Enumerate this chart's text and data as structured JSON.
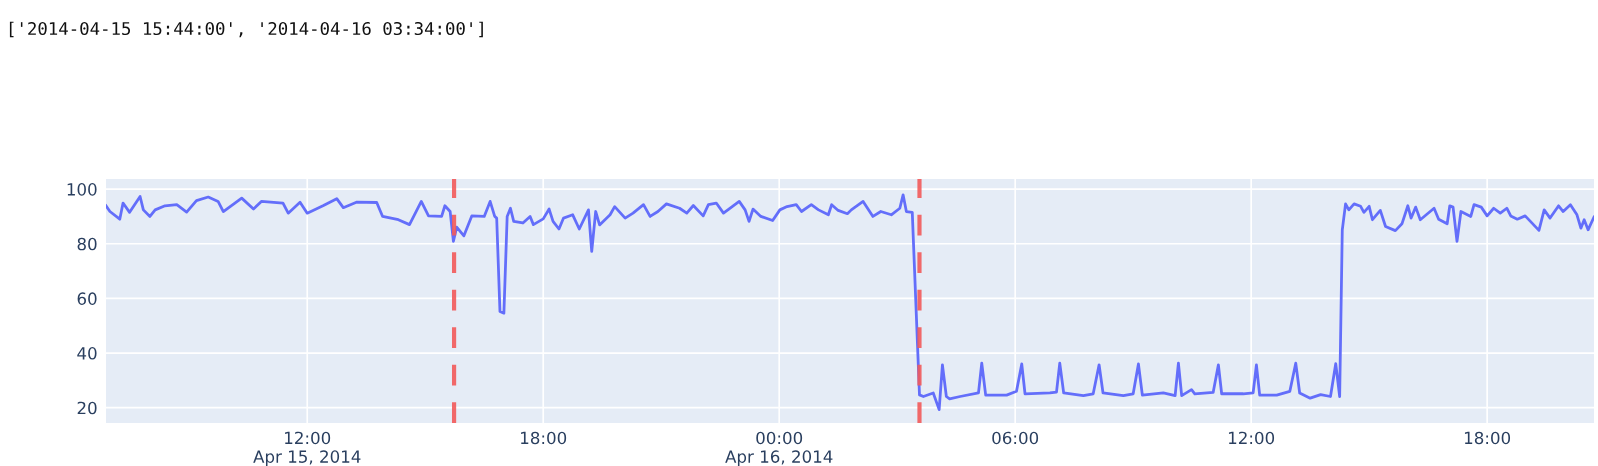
{
  "chart_data": {
    "type": "line",
    "title": "['2014-04-15 15:44:00', '2014-04-16 03:34:00']",
    "x": [
      "2014-04-15T06:53",
      "2014-04-15T06:59",
      "2014-04-15T07:14",
      "2014-04-15T07:19",
      "2014-04-15T07:29",
      "2014-04-15T07:45",
      "2014-04-15T07:50",
      "2014-04-15T08:00",
      "2014-04-15T08:08",
      "2014-04-15T08:23",
      "2014-04-15T08:41",
      "2014-04-15T08:56",
      "2014-04-15T09:11",
      "2014-04-15T09:29",
      "2014-04-15T09:44",
      "2014-04-15T09:52",
      "2014-04-15T10:20",
      "2014-04-15T10:38",
      "2014-04-15T10:50",
      "2014-04-15T11:23",
      "2014-04-15T11:31",
      "2014-04-15T11:49",
      "2014-04-15T12:00",
      "2014-04-15T12:24",
      "2014-04-15T12:45",
      "2014-04-15T12:55",
      "2014-04-15T13:15",
      "2014-04-15T13:46",
      "2014-04-15T13:55",
      "2014-04-15T14:19",
      "2014-04-15T14:36",
      "2014-04-15T14:54",
      "2014-04-15T15:05",
      "2014-04-15T15:25",
      "2014-04-15T15:30",
      "2014-04-15T15:38",
      "2014-04-15T15:43",
      "2014-04-15T15:48",
      "2014-04-15T15:59",
      "2014-04-15T16:11",
      "2014-04-15T16:30",
      "2014-04-15T16:39",
      "2014-04-15T16:46",
      "2014-04-15T16:49",
      "2014-04-15T16:54",
      "2014-04-15T17:00",
      "2014-04-15T17:05",
      "2014-04-15T17:10",
      "2014-04-15T17:15",
      "2014-04-15T17:29",
      "2014-04-15T17:40",
      "2014-04-15T17:45",
      "2014-04-15T18:00",
      "2014-04-15T18:09",
      "2014-04-15T18:15",
      "2014-04-15T18:24",
      "2014-04-15T18:31",
      "2014-04-15T18:45",
      "2014-04-15T18:55",
      "2014-04-15T19:09",
      "2014-04-15T19:14",
      "2014-04-15T19:20",
      "2014-04-15T19:26",
      "2014-04-15T19:42",
      "2014-04-15T19:49",
      "2014-04-15T20:05",
      "2014-04-15T20:17",
      "2014-04-15T20:33",
      "2014-04-15T20:43",
      "2014-04-15T20:55",
      "2014-04-15T21:08",
      "2014-04-15T21:28",
      "2014-04-15T21:39",
      "2014-04-15T21:49",
      "2014-04-15T22:04",
      "2014-04-15T22:12",
      "2014-04-15T22:24",
      "2014-04-15T22:35",
      "2014-04-15T22:59",
      "2014-04-15T23:08",
      "2014-04-15T23:14",
      "2014-04-15T23:20",
      "2014-04-15T23:32",
      "2014-04-15T23:50",
      "2014-04-16T00:01",
      "2014-04-16T00:12",
      "2014-04-16T00:26",
      "2014-04-16T00:34",
      "2014-04-16T00:49",
      "2014-04-16T01:00",
      "2014-04-16T01:15",
      "2014-04-16T01:20",
      "2014-04-16T01:30",
      "2014-04-16T01:44",
      "2014-04-16T01:50",
      "2014-04-16T02:08",
      "2014-04-16T02:23",
      "2014-04-16T02:35",
      "2014-04-16T02:51",
      "2014-04-16T03:04",
      "2014-04-16T03:09",
      "2014-04-16T03:14",
      "2014-04-16T03:23",
      "2014-04-16T03:34",
      "2014-04-16T03:40",
      "2014-04-16T03:55",
      "2014-04-16T04:04",
      "2014-04-16T04:09",
      "2014-04-16T04:15",
      "2014-04-16T04:20",
      "2014-04-16T04:36",
      "2014-04-16T05:04",
      "2014-04-16T05:09",
      "2014-04-16T05:15",
      "2014-04-16T05:47",
      "2014-04-16T06:02",
      "2014-04-16T06:10",
      "2014-04-16T06:15",
      "2014-04-16T06:53",
      "2014-04-16T07:03",
      "2014-04-16T07:08",
      "2014-04-16T07:14",
      "2014-04-16T07:44",
      "2014-04-16T07:59",
      "2014-04-16T08:08",
      "2014-04-16T08:14",
      "2014-04-16T08:45",
      "2014-04-16T09:00",
      "2014-04-16T09:08",
      "2014-04-16T09:14",
      "2014-04-16T09:46",
      "2014-04-16T10:04",
      "2014-04-16T10:09",
      "2014-04-16T10:14",
      "2014-04-16T10:29",
      "2014-04-16T10:34",
      "2014-04-16T11:02",
      "2014-04-16T11:10",
      "2014-04-16T11:15",
      "2014-04-16T11:48",
      "2014-04-16T12:03",
      "2014-04-16T12:08",
      "2014-04-16T12:13",
      "2014-04-16T12:39",
      "2014-04-16T12:59",
      "2014-04-16T13:08",
      "2014-04-16T13:14",
      "2014-04-16T13:30",
      "2014-04-16T13:46",
      "2014-04-16T14:01",
      "2014-04-16T14:09",
      "2014-04-16T14:15",
      "2014-04-16T14:19",
      "2014-04-16T14:24",
      "2014-04-16T14:29",
      "2014-04-16T14:37",
      "2014-04-16T14:47",
      "2014-04-16T14:52",
      "2014-04-16T15:00",
      "2014-04-16T15:05",
      "2014-04-16T15:17",
      "2014-04-16T15:25",
      "2014-04-16T15:40",
      "2014-04-16T15:50",
      "2014-04-16T15:59",
      "2014-04-16T16:04",
      "2014-04-16T16:11",
      "2014-04-16T16:18",
      "2014-04-16T16:39",
      "2014-04-16T16:46",
      "2014-04-16T16:59",
      "2014-04-16T17:03",
      "2014-04-16T17:08",
      "2014-04-16T17:14",
      "2014-04-16T17:20",
      "2014-04-16T17:35",
      "2014-04-16T17:40",
      "2014-04-16T17:51",
      "2014-04-16T18:00",
      "2014-04-16T18:10",
      "2014-04-16T18:20",
      "2014-04-16T18:30",
      "2014-04-16T18:36",
      "2014-04-16T18:46",
      "2014-04-16T18:58",
      "2014-04-16T19:06",
      "2014-04-16T19:19",
      "2014-04-16T19:27",
      "2014-04-16T19:36",
      "2014-04-16T19:49",
      "2014-04-16T19:56",
      "2014-04-16T20:07",
      "2014-04-16T20:17",
      "2014-04-16T20:23",
      "2014-04-16T20:28",
      "2014-04-16T20:34",
      "2014-04-16T20:43"
    ],
    "series": [
      {
        "color": "#636efa",
        "values": [
          93.9,
          91.8,
          89.0,
          94.9,
          91.5,
          97.3,
          92.4,
          90.0,
          92.4,
          93.9,
          94.3,
          91.6,
          95.8,
          97.1,
          95.5,
          91.8,
          96.7,
          92.7,
          95.5,
          94.9,
          91.2,
          95.2,
          91.2,
          93.9,
          96.5,
          93.2,
          95.2,
          95.1,
          90.0,
          88.8,
          87.0,
          95.5,
          90.2,
          90.0,
          93.9,
          91.8,
          80.9,
          86.1,
          82.9,
          90.2,
          90.0,
          95.5,
          90.0,
          89.4,
          55.2,
          54.6,
          90.0,
          93.0,
          88.2,
          87.6,
          90.0,
          87.0,
          89.1,
          92.7,
          88.2,
          85.4,
          89.4,
          90.6,
          85.4,
          92.4,
          77.2,
          91.8,
          86.9,
          90.6,
          93.6,
          89.4,
          91.2,
          94.3,
          90.0,
          91.8,
          94.6,
          93.0,
          91.2,
          94.0,
          90.2,
          94.3,
          94.9,
          91.2,
          95.5,
          92.4,
          88.2,
          92.7,
          90.0,
          88.5,
          92.4,
          93.6,
          94.3,
          91.8,
          94.3,
          92.4,
          90.6,
          94.3,
          92.2,
          91.0,
          92.4,
          95.5,
          90.0,
          91.8,
          90.6,
          93.0,
          97.9,
          91.8,
          91.5,
          24.7,
          24.1,
          25.4,
          19.3,
          35.7,
          24.1,
          23.2,
          24.1,
          25.4,
          36.3,
          24.6,
          24.6,
          26.0,
          36.0,
          25.1,
          25.4,
          25.7,
          36.3,
          25.4,
          24.4,
          25.1,
          35.7,
          25.4,
          24.4,
          25.1,
          36.0,
          24.6,
          25.4,
          24.4,
          36.3,
          24.4,
          26.6,
          25.1,
          25.6,
          35.7,
          25.1,
          25.1,
          25.4,
          35.7,
          24.6,
          24.6,
          26.0,
          36.3,
          25.4,
          23.5,
          24.8,
          24.1,
          36.1,
          24.1,
          85.1,
          94.6,
          92.4,
          94.6,
          93.7,
          91.5,
          93.7,
          88.8,
          92.2,
          86.3,
          84.8,
          87.3,
          93.9,
          89.4,
          93.4,
          88.8,
          93.0,
          89.0,
          87.3,
          93.9,
          93.4,
          80.9,
          91.8,
          90.0,
          94.3,
          93.4,
          90.2,
          93.0,
          91.2,
          93.0,
          90.2,
          89.0,
          90.2,
          88.2,
          84.9,
          92.4,
          89.4,
          93.9,
          91.8,
          94.3,
          90.6,
          85.7,
          88.8,
          85.1,
          89.8
        ]
      }
    ],
    "xlim": [
      "2014-04-15T06:53",
      "2014-04-16T20:43"
    ],
    "xticks": [
      {
        "value": "2014-04-15T12:00",
        "label": "12:00\nApr 15, 2014"
      },
      {
        "value": "2014-04-15T18:00",
        "label": "18:00"
      },
      {
        "value": "2014-04-16T00:00",
        "label": "00:00\nApr 16, 2014"
      },
      {
        "value": "2014-04-16T06:00",
        "label": "06:00"
      },
      {
        "value": "2014-04-16T12:00",
        "label": "12:00"
      },
      {
        "value": "2014-04-16T18:00",
        "label": "18:00"
      }
    ],
    "ylim": [
      14.4,
      103.7
    ],
    "yticks": [
      20,
      40,
      60,
      80,
      100
    ],
    "ref_lines": [
      {
        "axis": "x",
        "value": "2014-04-15T15:44",
        "color": "#f25a5a",
        "line_style": "dashed"
      },
      {
        "axis": "x",
        "value": "2014-04-16T03:34",
        "color": "#f25a5a",
        "line_style": "dashed"
      }
    ],
    "grid": true,
    "marker": "none",
    "line_style": "solid"
  }
}
